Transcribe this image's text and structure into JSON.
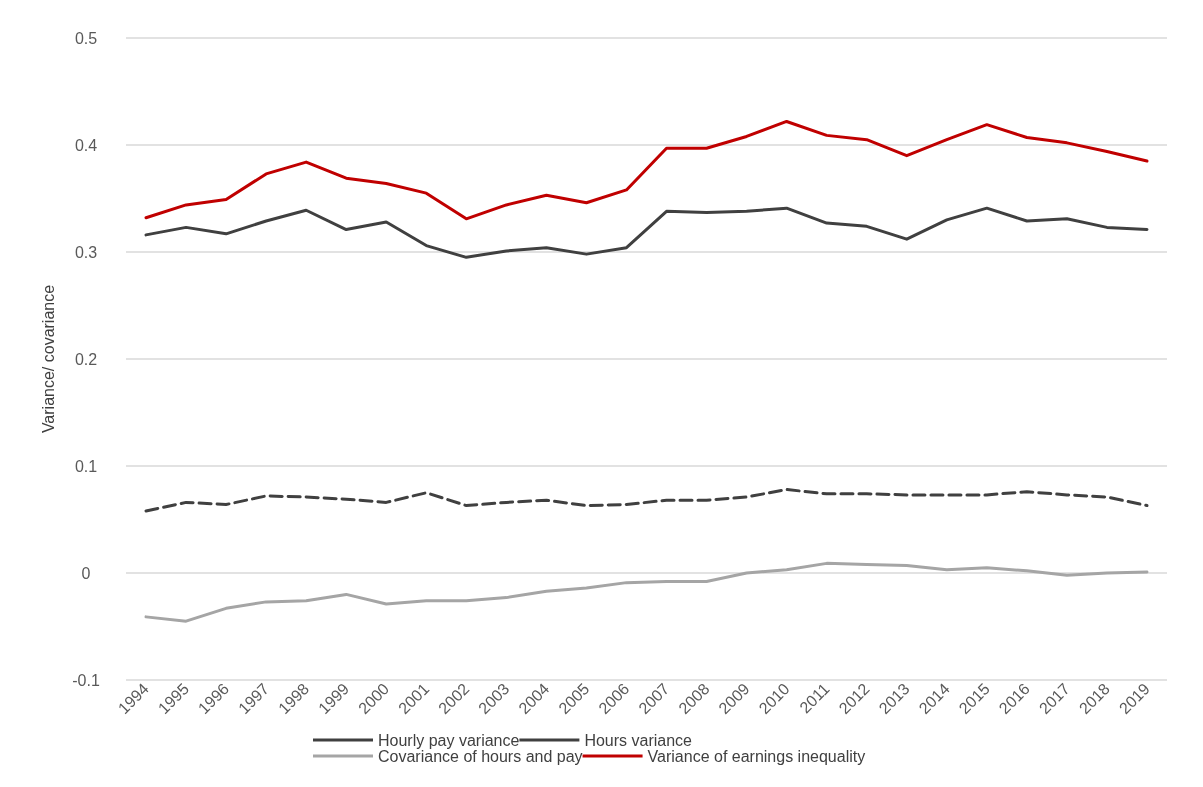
{
  "chart_data": {
    "type": "line",
    "ylabel": "Variance/ covariance",
    "categories": [
      "1994",
      "1995",
      "1996",
      "1997",
      "1998",
      "1999",
      "2000",
      "2001",
      "2002",
      "2003",
      "2004",
      "2005",
      "2006",
      "2007",
      "2008",
      "2009",
      "2010",
      "2011",
      "2012",
      "2013",
      "2014",
      "2015",
      "2016",
      "2017",
      "2018",
      "2019"
    ],
    "series": [
      {
        "name": "Hourly pay variance",
        "color": "#404040",
        "line_style": "solid",
        "values": [
          0.316,
          0.323,
          0.317,
          0.329,
          0.339,
          0.321,
          0.328,
          0.306,
          0.295,
          0.301,
          0.304,
          0.298,
          0.304,
          0.338,
          0.337,
          0.338,
          0.341,
          0.327,
          0.324,
          0.312,
          0.33,
          0.341,
          0.329,
          0.331,
          0.323,
          0.321
        ]
      },
      {
        "name": "Hours variance",
        "color": "#404040",
        "line_style": "dashed",
        "values": [
          0.058,
          0.066,
          0.064,
          0.072,
          0.071,
          0.069,
          0.066,
          0.075,
          0.063,
          0.066,
          0.068,
          0.063,
          0.064,
          0.068,
          0.068,
          0.071,
          0.078,
          0.074,
          0.074,
          0.073,
          0.073,
          0.073,
          0.076,
          0.073,
          0.071,
          0.063
        ]
      },
      {
        "name": "Covariance of hours and pay",
        "color": "#a5a5a5",
        "line_style": "solid",
        "values": [
          -0.041,
          -0.045,
          -0.033,
          -0.027,
          -0.026,
          -0.02,
          -0.029,
          -0.026,
          -0.026,
          -0.023,
          -0.017,
          -0.014,
          -0.009,
          -0.008,
          -0.008,
          0.0,
          0.003,
          0.009,
          0.008,
          0.007,
          0.003,
          0.005,
          0.002,
          -0.002,
          0.0,
          0.001
        ]
      },
      {
        "name": "Variance of earnings inequality",
        "color": "#c00000",
        "line_style": "solid",
        "values": [
          0.332,
          0.344,
          0.349,
          0.373,
          0.384,
          0.369,
          0.364,
          0.355,
          0.331,
          0.344,
          0.353,
          0.346,
          0.358,
          0.397,
          0.397,
          0.408,
          0.422,
          0.409,
          0.405,
          0.39,
          0.405,
          0.419,
          0.407,
          0.402,
          0.394,
          0.385
        ]
      }
    ],
    "ylim": [
      -0.1,
      0.5
    ],
    "yticks": [
      -0.1,
      0,
      0.1,
      0.2,
      0.3,
      0.4,
      0.5
    ],
    "grid": "y",
    "legend": "bottom",
    "marker": "none"
  }
}
